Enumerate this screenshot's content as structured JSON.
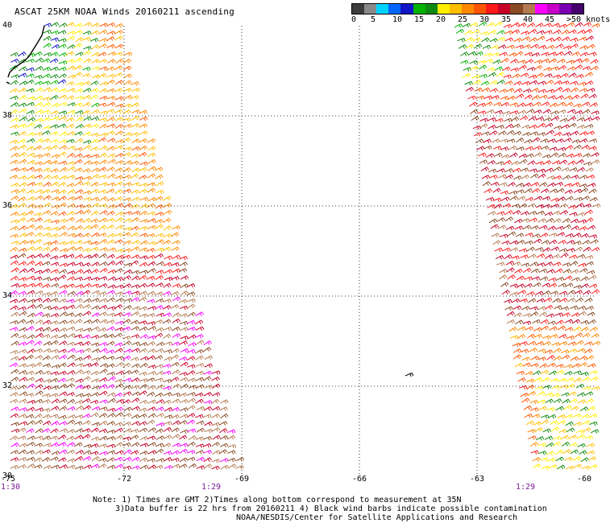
{
  "title": "ASCAT 25KM NOAA Winds 20160211 ascending",
  "legend": {
    "colors": [
      "#3d3d3d",
      "#8a8a8a",
      "#00d3ff",
      "#0066ff",
      "#1414c8",
      "#00b400",
      "#0e8a0e",
      "#ffee00",
      "#ffbf00",
      "#ff8800",
      "#ff5500",
      "#ff1a1a",
      "#c80028",
      "#8a4a24",
      "#b47a50",
      "#ff00ff",
      "#c800c8",
      "#7a00b4",
      "#46006e"
    ],
    "ticks": [
      "0",
      "5",
      "10",
      "15",
      "20",
      "25",
      "30",
      "35",
      "40",
      "45",
      ">50 knots"
    ]
  },
  "axes": {
    "lat_labels": [
      "40",
      "38",
      "36",
      "34",
      "32",
      "30"
    ],
    "lon_labels": [
      "-75",
      "-72",
      "-69",
      "-66",
      "-63",
      "-60"
    ],
    "lat_range": [
      30,
      40
    ],
    "lon_range": [
      -75,
      -60
    ]
  },
  "pass_times": [
    "1:30",
    "1:29",
    "1:29"
  ],
  "note": {
    "line1": "Note: 1) Times are GMT 2)Times along bottom correspond to measurement at 35N",
    "line2": "3)Data buffer is 22 hrs from 20160211 4) Black wind barbs indicate possible contamination",
    "line3": "NOAA/NESDIS/Center for Satellite Applications and Research"
  }
}
